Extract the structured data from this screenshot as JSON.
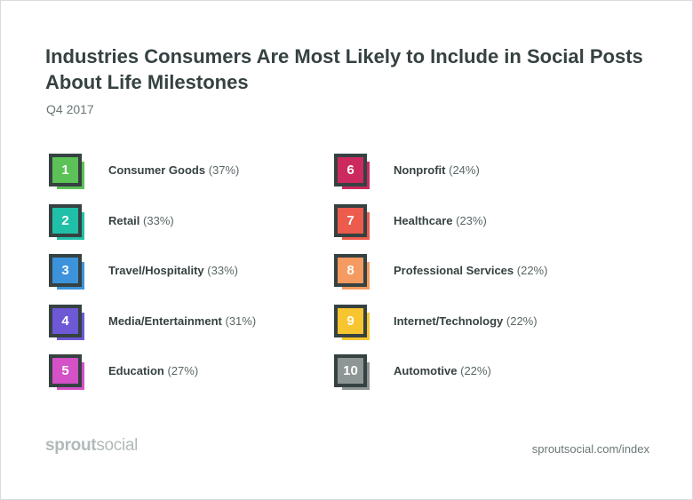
{
  "chart_data": {
    "type": "table",
    "title": "Industries Consumers Are Most Likely to Include in Social Posts About Life Milestones",
    "subtitle": "Q4 2017",
    "unit": "%",
    "items": [
      {
        "rank": "1",
        "name": "Consumer Goods",
        "value": 37,
        "pct_label": "(37%)",
        "color": "#5cc157"
      },
      {
        "rank": "2",
        "name": "Retail",
        "value": 33,
        "pct_label": "(33%)",
        "color": "#20c0a8"
      },
      {
        "rank": "3",
        "name": "Travel/Hospitality",
        "value": 33,
        "pct_label": "(33%)",
        "color": "#3c93dc"
      },
      {
        "rank": "4",
        "name": "Media/Entertainment",
        "value": 31,
        "pct_label": "(31%)",
        "color": "#6d58d6"
      },
      {
        "rank": "5",
        "name": "Education",
        "value": 27,
        "pct_label": "(27%)",
        "color": "#d451c7"
      },
      {
        "rank": "6",
        "name": "Nonprofit",
        "value": 24,
        "pct_label": "(24%)",
        "color": "#cc2a5f"
      },
      {
        "rank": "7",
        "name": "Healthcare",
        "value": 23,
        "pct_label": "(23%)",
        "color": "#ec5b4c"
      },
      {
        "rank": "8",
        "name": "Professional Services",
        "value": 22,
        "pct_label": "(22%)",
        "color": "#f59a60"
      },
      {
        "rank": "9",
        "name": "Internet/Technology",
        "value": 22,
        "pct_label": "(22%)",
        "color": "#f7c52f"
      },
      {
        "rank": "10",
        "name": "Automotive",
        "value": 22,
        "pct_label": "(22%)",
        "color": "#8e9595"
      }
    ]
  },
  "footer": {
    "brand_part1": "sprout",
    "brand_part2": "social",
    "source": "sproutsocial.com/index"
  }
}
